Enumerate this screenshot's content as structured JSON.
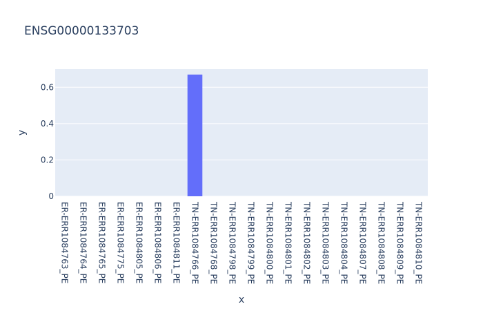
{
  "chart_data": {
    "type": "bar",
    "title": "ENSG00000133703",
    "xlabel": "x",
    "ylabel": "y",
    "categories": [
      "ER-ERR1084763_PE",
      "ER-ERR1084764_PE",
      "ER-ERR1084765_PE",
      "ER-ERR1084775_PE",
      "ER-ERR1084805_PE",
      "ER-ERR1084806_PE",
      "ER-ERR1084811_PE",
      "TN-ERR1084766_PE",
      "TN-ERR1084768_PE",
      "TN-ERR1084798_PE",
      "TN-ERR1084799_PE",
      "TN-ERR1084800_PE",
      "TN-ERR1084801_PE",
      "TN-ERR1084802_PE",
      "TN-ERR1084803_PE",
      "TN-ERR1084804_PE",
      "TN-ERR1084807_PE",
      "TN-ERR1084808_PE",
      "TN-ERR1084809_PE",
      "TN-ERR1084810_PE"
    ],
    "values": [
      0,
      0,
      0,
      0,
      0,
      0,
      0,
      0.67,
      0,
      0,
      0,
      0,
      0,
      0,
      0,
      0,
      0,
      0,
      0,
      0
    ],
    "ylim": [
      0,
      0.7
    ],
    "yticks": [
      0,
      0.2,
      0.4,
      0.6
    ],
    "ytick_labels": [
      "0",
      "0.2",
      "0.4",
      "0.6"
    ],
    "grid": true,
    "colors": {
      "bar": "#636efa",
      "plot_bg": "#e5ecf6",
      "grid": "#ffffff",
      "text": "#2a3f5f"
    }
  }
}
